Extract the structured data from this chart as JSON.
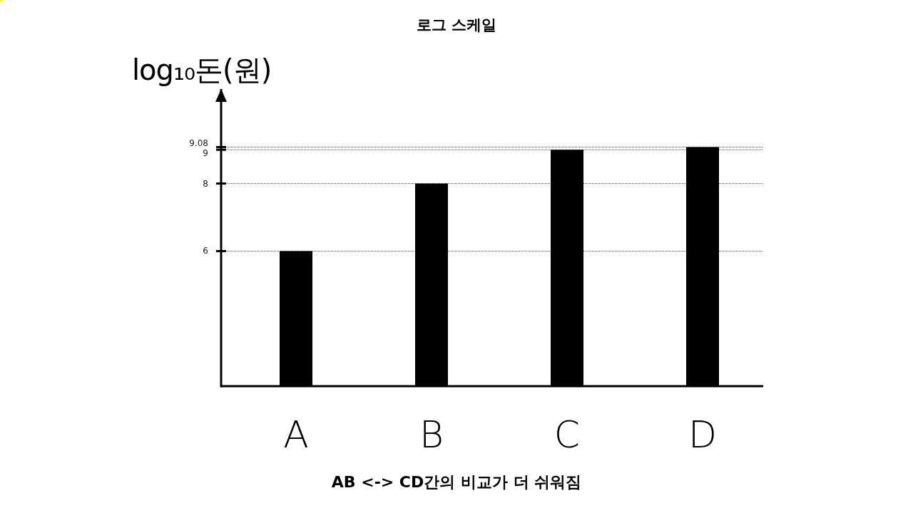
{
  "chart_data": {
    "type": "bar",
    "title": "로그 스케일",
    "ylabel": "log₁₀돈(원)",
    "categories": [
      "A",
      "B",
      "C",
      "D"
    ],
    "values": [
      6,
      8,
      9,
      9.08
    ],
    "color": "#000000",
    "ylim": [
      2,
      10.8
    ],
    "yticks": [
      6,
      8,
      9,
      9.08
    ],
    "grid": "y",
    "annotations": [
      "AB <-> CD간의 비교가 더 쉬워짐"
    ]
  }
}
